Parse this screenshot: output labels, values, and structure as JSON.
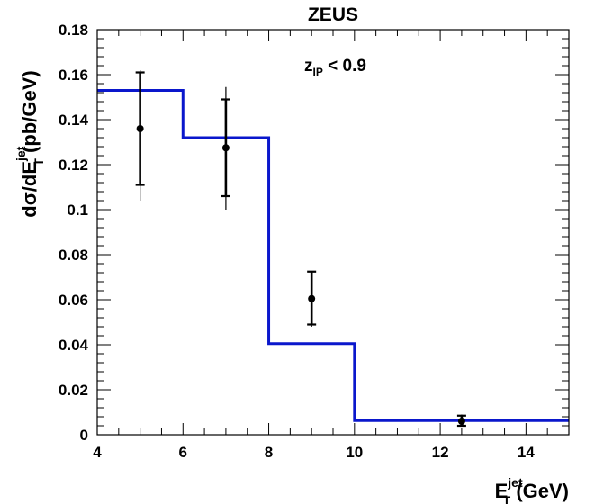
{
  "chart_data": {
    "type": "line",
    "title": "ZEUS",
    "annotation": {
      "base": "z",
      "sub": "IP",
      "rest": " < 0.9"
    },
    "ylabel": {
      "pre": "dσ/dE",
      "sup": "jet",
      "sub": "T",
      "post": " (pb/GeV)"
    },
    "xlabel": {
      "base": "E",
      "sup": "jet",
      "sub": "T",
      "post": "  (GeV)"
    },
    "xlim": [
      4,
      15
    ],
    "ylim": [
      0,
      0.18
    ],
    "x_ticks": [
      4,
      6,
      8,
      10,
      12,
      14
    ],
    "x_tick_labels": [
      "4",
      "6",
      "8",
      "10",
      "12",
      "14"
    ],
    "y_ticks": [
      0,
      0.02,
      0.04,
      0.06,
      0.08,
      0.1,
      0.12,
      0.14,
      0.16,
      0.18
    ],
    "y_tick_labels": [
      "0",
      "0.02",
      "0.04",
      "0.06",
      "0.08",
      "0.1",
      "0.12",
      "0.14",
      "0.16",
      "0.18"
    ],
    "grid": false,
    "series": [
      {
        "kind": "step",
        "color": "#0a17cc",
        "bins": [
          {
            "x0": 4,
            "x1": 6,
            "y": 0.153
          },
          {
            "x0": 6,
            "x1": 8,
            "y": 0.132
          },
          {
            "x0": 8,
            "x1": 10,
            "y": 0.0405
          },
          {
            "x0": 10,
            "x1": 15,
            "y": 0.0063
          }
        ]
      },
      {
        "kind": "points",
        "color": "#000000",
        "points": [
          {
            "x": 5,
            "y": 0.136,
            "stat_lo": 0.111,
            "stat_hi": 0.161,
            "tot_lo": 0.104,
            "tot_hi": 0.162
          },
          {
            "x": 7,
            "y": 0.1275,
            "stat_lo": 0.106,
            "stat_hi": 0.149,
            "tot_lo": 0.1,
            "tot_hi": 0.1545
          },
          {
            "x": 9,
            "y": 0.0605,
            "stat_lo": 0.049,
            "stat_hi": 0.0725,
            "tot_lo": 0.048,
            "tot_hi": 0.0725
          },
          {
            "x": 12.5,
            "y": 0.006,
            "stat_lo": 0.004,
            "stat_hi": 0.0085,
            "tot_lo": 0.004,
            "tot_hi": 0.009
          }
        ]
      }
    ]
  }
}
